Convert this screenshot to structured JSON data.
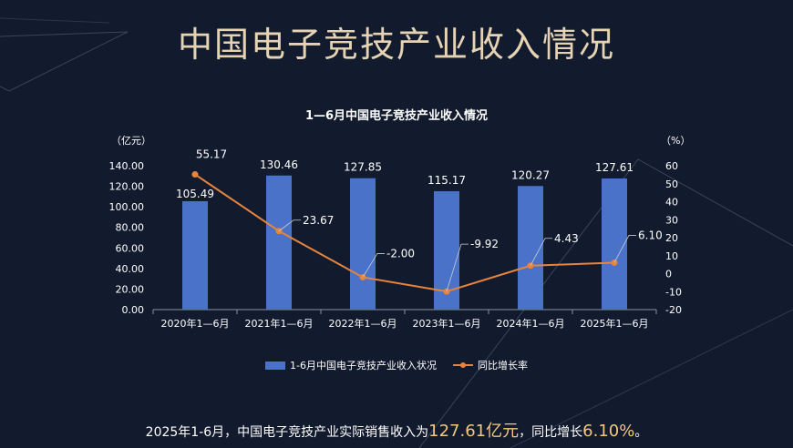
{
  "page": {
    "title": "中国电子竞技产业收入情况"
  },
  "summary": {
    "prefix": "2025年1-6月，中国电子竞技产业实际销售收入为",
    "revenue": "127.61亿元",
    "middle": "，同比增长",
    "growth": "6.10%",
    "suffix": "。"
  },
  "chart_data": {
    "type": "bar",
    "title": "1—6月中国电子竞技产业收入情况",
    "categories": [
      "2020年1—6月",
      "2021年1—6月",
      "2022年1—6月",
      "2023年1—6月",
      "2024年1—6月",
      "2025年1—6月"
    ],
    "series": [
      {
        "name": "1-6月中国电子竞技产业收入状况",
        "type": "bar",
        "axis": "left",
        "values": [
          105.49,
          130.46,
          127.85,
          115.17,
          120.27,
          127.61
        ],
        "labels": [
          "105.49",
          "130.46",
          "127.85",
          "115.17",
          "120.27",
          "127.61"
        ],
        "color": "#4a72c8"
      },
      {
        "name": "同比增长率",
        "type": "line",
        "axis": "right",
        "values": [
          55.17,
          23.67,
          -2.0,
          -9.92,
          4.43,
          6.1
        ],
        "labels": [
          "55.17",
          "23.67",
          "-2.00",
          "-9.92",
          "4.43",
          "6.10"
        ],
        "color": "#e8843c"
      }
    ],
    "y_left": {
      "label": "（亿元）",
      "ylim": [
        0,
        140
      ],
      "ticks": [
        "0.00",
        "20.00",
        "40.00",
        "60.00",
        "80.00",
        "100.00",
        "120.00",
        "140.00"
      ]
    },
    "y_right": {
      "label": "（%）",
      "ylim": [
        -20,
        60
      ],
      "ticks": [
        "-20",
        "-10",
        "0",
        "10",
        "20",
        "30",
        "40",
        "50",
        "60"
      ]
    },
    "grid": false,
    "legend": "bottom-center"
  }
}
